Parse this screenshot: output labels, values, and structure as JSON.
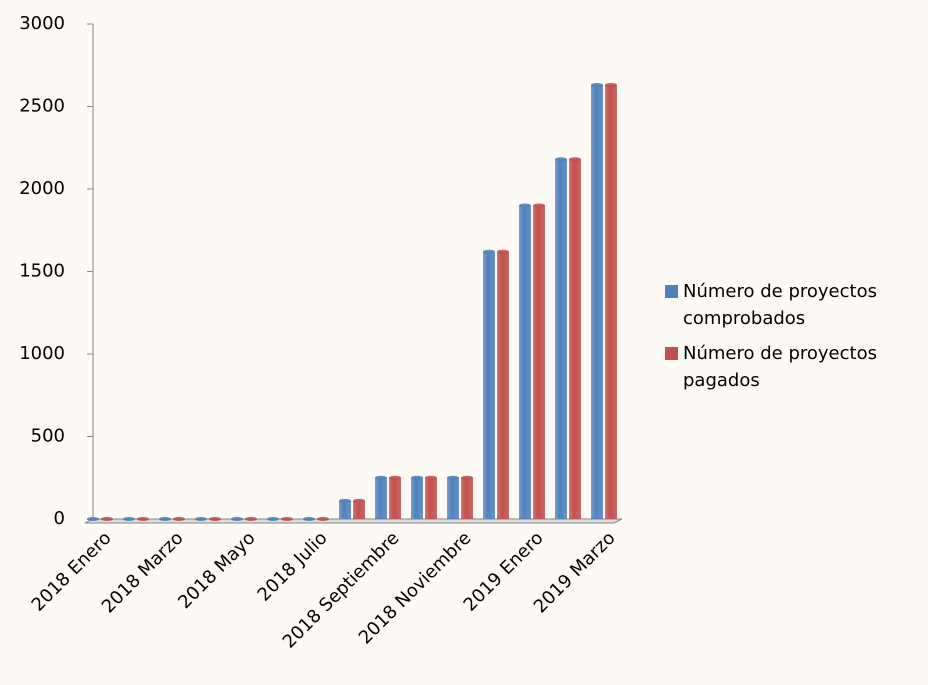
{
  "chart_data": {
    "type": "bar",
    "categories": [
      "2018 Enero",
      null,
      "2018 Marzo",
      null,
      "2018 Mayo",
      null,
      "2018 Julio",
      null,
      "2018 Septiembre",
      null,
      "2018 Noviembre",
      null,
      "2019 Enero",
      null,
      "2019 Marzo"
    ],
    "series": [
      {
        "name": "Número de proyectos comprobados",
        "color": "#4f81bd",
        "values": [
          0,
          0,
          0,
          0,
          0,
          0,
          0,
          110,
          250,
          250,
          250,
          1620,
          1900,
          2180,
          2630
        ]
      },
      {
        "name": "Número de proyectos pagados",
        "color": "#c0504d",
        "values": [
          0,
          0,
          0,
          0,
          0,
          0,
          0,
          110,
          250,
          250,
          250,
          1620,
          1900,
          2180,
          2630
        ]
      }
    ],
    "ylim": [
      0,
      3000
    ],
    "yticks": [
      0,
      500,
      1000,
      1500,
      2000,
      2500,
      3000
    ],
    "grid": false,
    "legend": "right"
  }
}
